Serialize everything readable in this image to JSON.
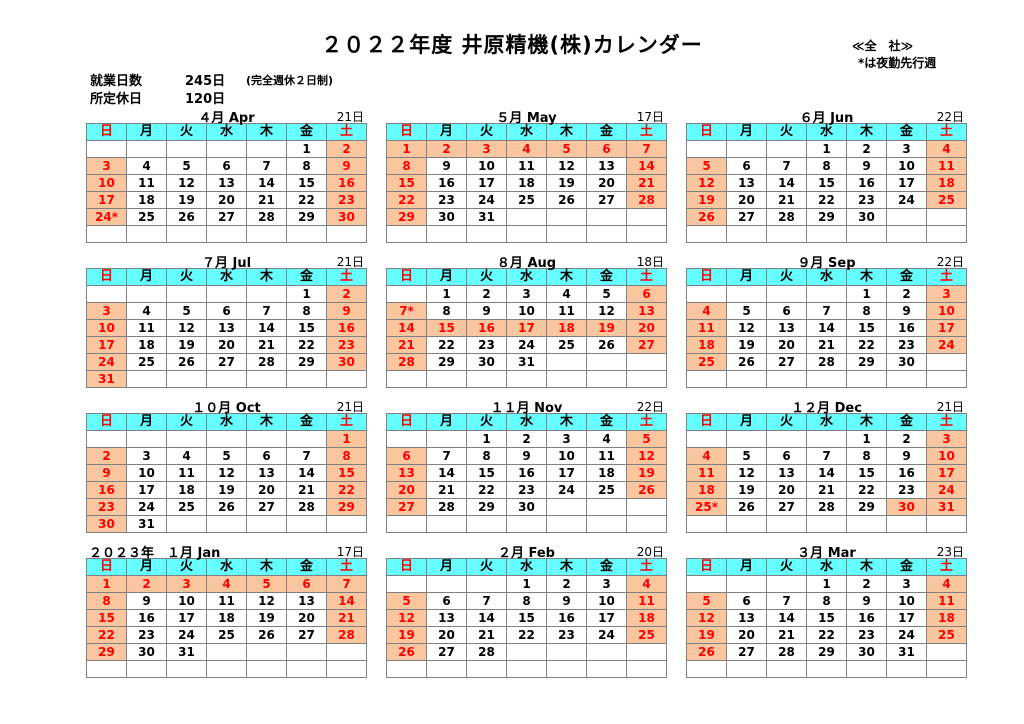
{
  "title": "２０２２年度 井原精機(株)カレンダー",
  "scope_label": "≪全　社≫",
  "night_note": "*は夜勤先行週",
  "summary": {
    "work_label": "就業日数",
    "work_value": "245日",
    "work_note": "(完全週休２日制)",
    "off_label": "所定休日",
    "off_value": "120日"
  },
  "weekdays": [
    "日",
    "月",
    "火",
    "水",
    "木",
    "金",
    "土"
  ],
  "colors": {
    "header_bg": "#66ffff",
    "holiday_bg": "#f9c6a0",
    "holiday_text": "#ff0000",
    "border": "#808080"
  },
  "months": [
    {
      "label": "４月 Apr",
      "workdays": "21日",
      "weeks": [
        [
          "",
          "",
          "",
          "",
          "",
          "1",
          "2"
        ],
        [
          "3",
          "4",
          "5",
          "6",
          "7",
          "8",
          "9"
        ],
        [
          "10",
          "11",
          "12",
          "13",
          "14",
          "15",
          "16"
        ],
        [
          "17",
          "18",
          "19",
          "20",
          "21",
          "22",
          "23"
        ],
        [
          "24*",
          "25",
          "26",
          "27",
          "28",
          "29",
          "30"
        ],
        [
          "",
          "",
          "",
          "",
          "",
          "",
          ""
        ]
      ],
      "holidays": [
        "2",
        "3",
        "9",
        "10",
        "16",
        "17",
        "23",
        "24*",
        "30"
      ]
    },
    {
      "label": "５月 May",
      "workdays": "17日",
      "weeks": [
        [
          "1",
          "2",
          "3",
          "4",
          "5",
          "6",
          "7"
        ],
        [
          "8",
          "9",
          "10",
          "11",
          "12",
          "13",
          "14"
        ],
        [
          "15",
          "16",
          "17",
          "18",
          "19",
          "20",
          "21"
        ],
        [
          "22",
          "23",
          "24",
          "25",
          "26",
          "27",
          "28"
        ],
        [
          "29",
          "30",
          "31",
          "",
          "",
          "",
          ""
        ],
        [
          "",
          "",
          "",
          "",
          "",
          "",
          ""
        ]
      ],
      "holidays": [
        "1",
        "2",
        "3",
        "4",
        "5",
        "6",
        "7",
        "8",
        "14",
        "15",
        "21",
        "22",
        "28",
        "29"
      ]
    },
    {
      "label": "６月 Jun",
      "workdays": "22日",
      "weeks": [
        [
          "",
          "",
          "",
          "1",
          "2",
          "3",
          "4"
        ],
        [
          "5",
          "6",
          "7",
          "8",
          "9",
          "10",
          "11"
        ],
        [
          "12",
          "13",
          "14",
          "15",
          "16",
          "17",
          "18"
        ],
        [
          "19",
          "20",
          "21",
          "22",
          "23",
          "24",
          "25"
        ],
        [
          "26",
          "27",
          "28",
          "29",
          "30",
          "",
          ""
        ],
        [
          "",
          "",
          "",
          "",
          "",
          "",
          ""
        ]
      ],
      "holidays": [
        "4",
        "5",
        "11",
        "12",
        "18",
        "19",
        "25",
        "26"
      ]
    },
    {
      "label": "７月 Jul",
      "workdays": "21日",
      "weeks": [
        [
          "",
          "",
          "",
          "",
          "",
          "1",
          "2"
        ],
        [
          "3",
          "4",
          "5",
          "6",
          "7",
          "8",
          "9"
        ],
        [
          "10",
          "11",
          "12",
          "13",
          "14",
          "15",
          "16"
        ],
        [
          "17",
          "18",
          "19",
          "20",
          "21",
          "22",
          "23"
        ],
        [
          "24",
          "25",
          "26",
          "27",
          "28",
          "29",
          "30"
        ],
        [
          "31",
          "",
          "",
          "",
          "",
          "",
          ""
        ]
      ],
      "holidays": [
        "2",
        "3",
        "9",
        "10",
        "16",
        "17",
        "23",
        "24",
        "30",
        "31"
      ]
    },
    {
      "label": "８月 Aug",
      "workdays": "18日",
      "weeks": [
        [
          "",
          "1",
          "2",
          "3",
          "4",
          "5",
          "6"
        ],
        [
          "7*",
          "8",
          "9",
          "10",
          "11",
          "12",
          "13"
        ],
        [
          "14",
          "15",
          "16",
          "17",
          "18",
          "19",
          "20"
        ],
        [
          "21",
          "22",
          "23",
          "24",
          "25",
          "26",
          "27"
        ],
        [
          "28",
          "29",
          "30",
          "31",
          "",
          "",
          ""
        ],
        [
          "",
          "",
          "",
          "",
          "",
          "",
          ""
        ]
      ],
      "holidays": [
        "6",
        "7*",
        "13",
        "14",
        "15",
        "16",
        "17",
        "18",
        "19",
        "20",
        "21",
        "27",
        "28"
      ]
    },
    {
      "label": "９月 Sep",
      "workdays": "22日",
      "weeks": [
        [
          "",
          "",
          "",
          "",
          "1",
          "2",
          "3"
        ],
        [
          "4",
          "5",
          "6",
          "7",
          "8",
          "9",
          "10"
        ],
        [
          "11",
          "12",
          "13",
          "14",
          "15",
          "16",
          "17"
        ],
        [
          "18",
          "19",
          "20",
          "21",
          "22",
          "23",
          "24"
        ],
        [
          "25",
          "26",
          "27",
          "28",
          "29",
          "30",
          ""
        ],
        [
          "",
          "",
          "",
          "",
          "",
          "",
          ""
        ]
      ],
      "holidays": [
        "3",
        "4",
        "10",
        "11",
        "17",
        "18",
        "24",
        "25"
      ]
    },
    {
      "label": "１０月 Oct",
      "workdays": "21日",
      "weeks": [
        [
          "",
          "",
          "",
          "",
          "",
          "",
          "1"
        ],
        [
          "2",
          "3",
          "4",
          "5",
          "6",
          "7",
          "8"
        ],
        [
          "9",
          "10",
          "11",
          "12",
          "13",
          "14",
          "15"
        ],
        [
          "16",
          "17",
          "18",
          "19",
          "20",
          "21",
          "22"
        ],
        [
          "23",
          "24",
          "25",
          "26",
          "27",
          "28",
          "29"
        ],
        [
          "30",
          "31",
          "",
          "",
          "",
          "",
          ""
        ]
      ],
      "holidays": [
        "1",
        "2",
        "8",
        "9",
        "15",
        "16",
        "22",
        "23",
        "29",
        "30"
      ]
    },
    {
      "label": "１１月 Nov",
      "workdays": "22日",
      "weeks": [
        [
          "",
          "",
          "1",
          "2",
          "3",
          "4",
          "5"
        ],
        [
          "6",
          "7",
          "8",
          "9",
          "10",
          "11",
          "12"
        ],
        [
          "13",
          "14",
          "15",
          "16",
          "17",
          "18",
          "19"
        ],
        [
          "20",
          "21",
          "22",
          "23",
          "24",
          "25",
          "26"
        ],
        [
          "27",
          "28",
          "29",
          "30",
          "",
          "",
          ""
        ],
        [
          "",
          "",
          "",
          "",
          "",
          "",
          ""
        ]
      ],
      "holidays": [
        "5",
        "6",
        "12",
        "13",
        "19",
        "20",
        "26",
        "27"
      ]
    },
    {
      "label": "１２月 Dec",
      "workdays": "21日",
      "weeks": [
        [
          "",
          "",
          "",
          "",
          "1",
          "2",
          "3"
        ],
        [
          "4",
          "5",
          "6",
          "7",
          "8",
          "9",
          "10"
        ],
        [
          "11",
          "12",
          "13",
          "14",
          "15",
          "16",
          "17"
        ],
        [
          "18",
          "19",
          "20",
          "21",
          "22",
          "23",
          "24"
        ],
        [
          "25*",
          "26",
          "27",
          "28",
          "29",
          "30",
          "31"
        ],
        [
          "",
          "",
          "",
          "",
          "",
          "",
          ""
        ]
      ],
      "holidays": [
        "3",
        "4",
        "10",
        "11",
        "17",
        "18",
        "24",
        "25*",
        "30",
        "31"
      ]
    },
    {
      "label": "２０２３年　１月 Jan",
      "workdays": "17日",
      "year_prefix": true,
      "weeks": [
        [
          "1",
          "2",
          "3",
          "4",
          "5",
          "6",
          "7"
        ],
        [
          "8",
          "9",
          "10",
          "11",
          "12",
          "13",
          "14"
        ],
        [
          "15",
          "16",
          "17",
          "18",
          "19",
          "20",
          "21"
        ],
        [
          "22",
          "23",
          "24",
          "25",
          "26",
          "27",
          "28"
        ],
        [
          "29",
          "30",
          "31",
          "",
          "",
          "",
          ""
        ],
        [
          "",
          "",
          "",
          "",
          "",
          "",
          ""
        ]
      ],
      "holidays": [
        "1",
        "2",
        "3",
        "4",
        "5",
        "6",
        "7",
        "8",
        "14",
        "15",
        "21",
        "22",
        "28",
        "29"
      ]
    },
    {
      "label": "２月 Feb",
      "workdays": "20日",
      "weeks": [
        [
          "",
          "",
          "",
          "1",
          "2",
          "3",
          "4"
        ],
        [
          "5",
          "6",
          "7",
          "8",
          "9",
          "10",
          "11"
        ],
        [
          "12",
          "13",
          "14",
          "15",
          "16",
          "17",
          "18"
        ],
        [
          "19",
          "20",
          "21",
          "22",
          "23",
          "24",
          "25"
        ],
        [
          "26",
          "27",
          "28",
          "",
          "",
          "",
          ""
        ],
        [
          "",
          "",
          "",
          "",
          "",
          "",
          ""
        ]
      ],
      "holidays": [
        "4",
        "5",
        "11",
        "12",
        "18",
        "19",
        "25",
        "26"
      ]
    },
    {
      "label": "３月 Mar",
      "workdays": "23日",
      "weeks": [
        [
          "",
          "",
          "",
          "1",
          "2",
          "3",
          "4"
        ],
        [
          "5",
          "6",
          "7",
          "8",
          "9",
          "10",
          "11"
        ],
        [
          "12",
          "13",
          "14",
          "15",
          "16",
          "17",
          "18"
        ],
        [
          "19",
          "20",
          "21",
          "22",
          "23",
          "24",
          "25"
        ],
        [
          "26",
          "27",
          "28",
          "29",
          "30",
          "31",
          ""
        ],
        [
          "",
          "",
          "",
          "",
          "",
          "",
          ""
        ]
      ],
      "holidays": [
        "4",
        "5",
        "11",
        "12",
        "18",
        "19",
        "25",
        "26"
      ]
    }
  ]
}
